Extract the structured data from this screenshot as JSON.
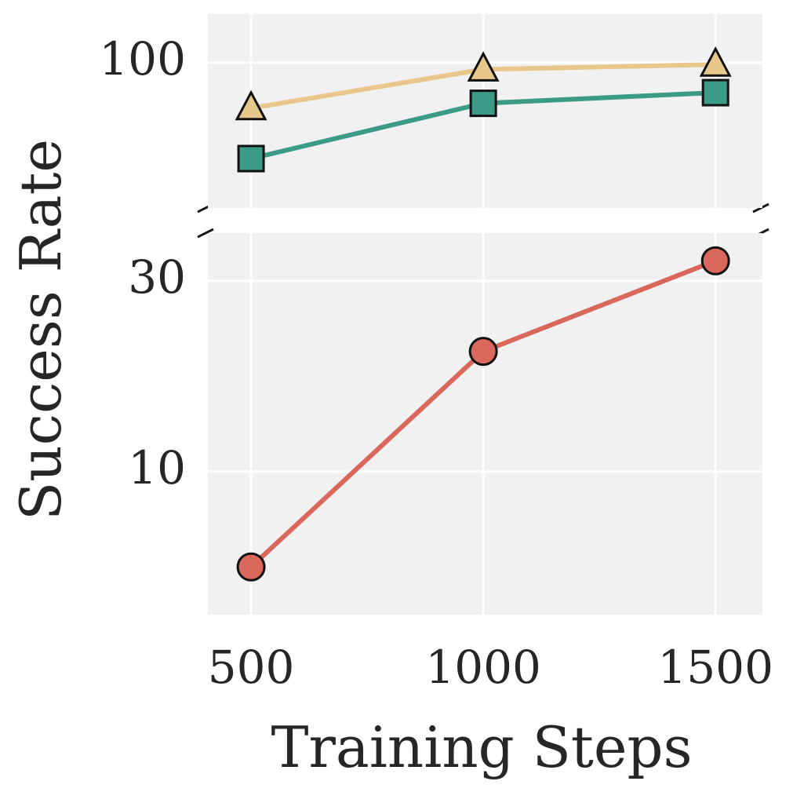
{
  "chart_data": [
    {
      "type": "line",
      "x": [
        500,
        1000,
        1500
      ],
      "xlim": [
        407,
        1601
      ],
      "ylim": [
        85,
        105
      ],
      "yticks": [
        100
      ],
      "grid": true,
      "series": [
        {
          "color": "#e8c88a",
          "marker": "triangle",
          "values": [
            95.3,
            99.3,
            99.8
          ]
        },
        {
          "color": "#3b9b86",
          "marker": "square",
          "values": [
            90.1,
            95.8,
            96.9
          ]
        }
      ]
    },
    {
      "type": "line",
      "x": [
        500,
        1000,
        1500
      ],
      "xlim": [
        407,
        1601
      ],
      "ylim": [
        -5,
        35
      ],
      "yticks": [
        10,
        30
      ],
      "xticks": [
        500,
        1000,
        1500
      ],
      "grid": true,
      "xlabel": "Training Steps",
      "ylabel": "Success Rate",
      "series": [
        {
          "color": "#d9675c",
          "marker": "circle",
          "values": [
            0,
            22.6,
            32.1
          ]
        }
      ]
    }
  ]
}
